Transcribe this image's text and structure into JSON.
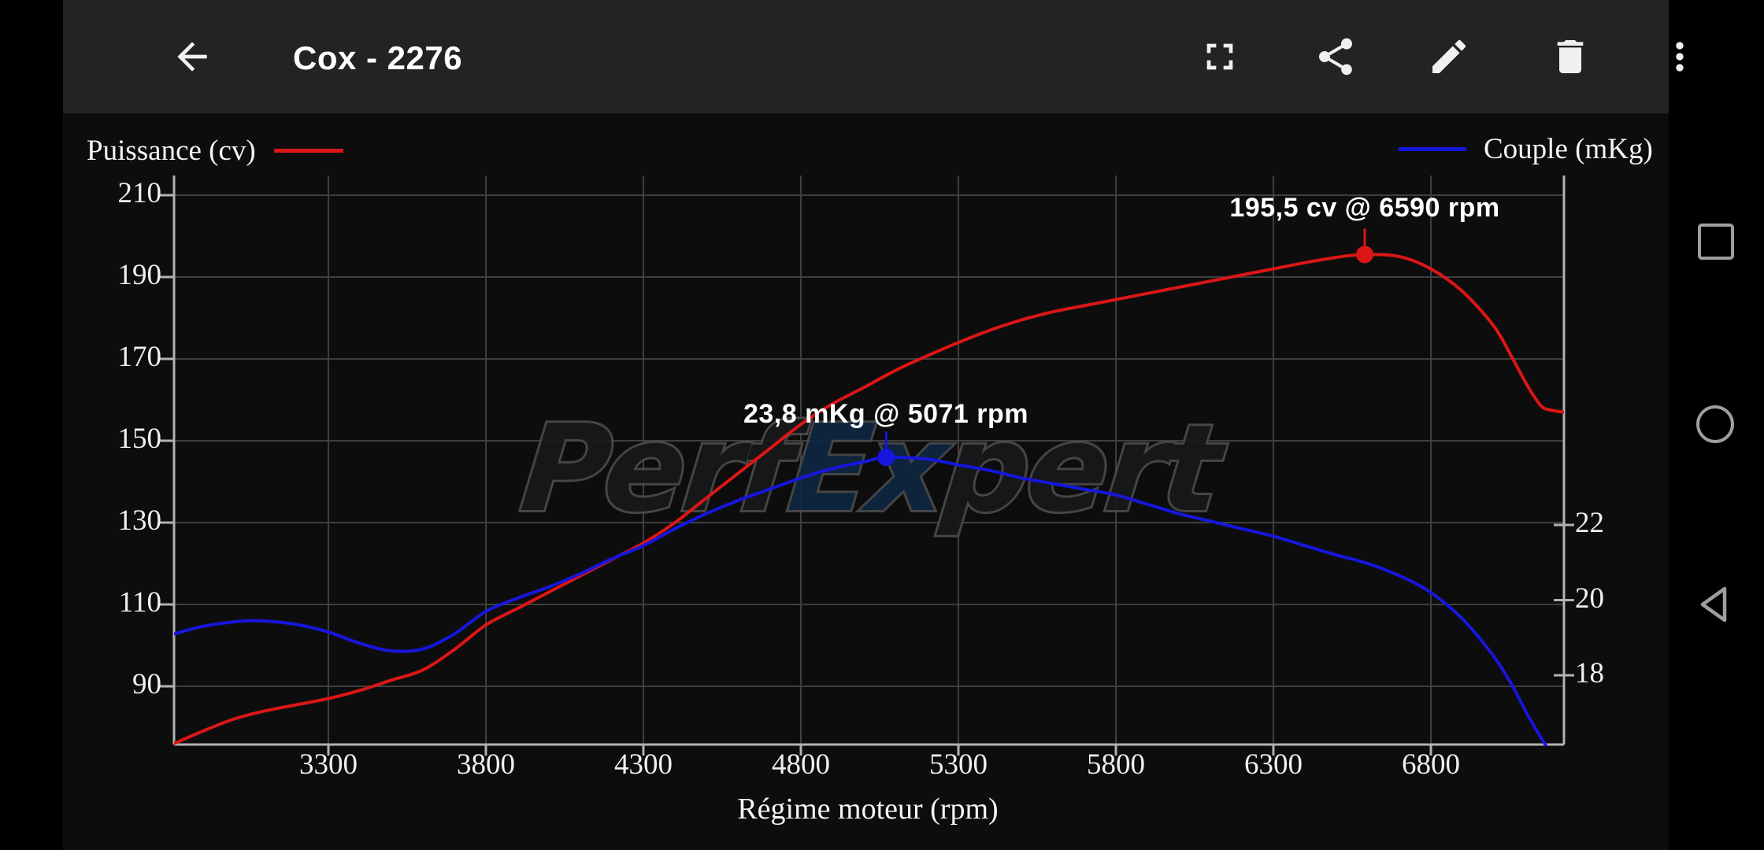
{
  "app_bar": {
    "title": "Cox - 2276",
    "icons": [
      "back-arrow-icon",
      "fullscreen-icon",
      "share-icon",
      "edit-pencil-icon",
      "delete-trash-icon",
      "overflow-menu-icon"
    ],
    "background": "#232323"
  },
  "nav_bar": {
    "buttons": [
      "recents-square",
      "home-circle",
      "back-triangle"
    ],
    "color": "#9e9e9e"
  },
  "watermark": {
    "part1": "Perf",
    "part2": "Ex",
    "part3": "pert"
  },
  "chart_data": {
    "type": "line",
    "xlabel": "Régime moteur (rpm)",
    "x_ticks": [
      3300,
      3800,
      4300,
      4800,
      5300,
      5800,
      6300,
      6800
    ],
    "x_range": [
      2810,
      7220
    ],
    "left_axis": {
      "ticks": [
        210,
        190,
        170,
        150,
        130,
        110,
        90
      ],
      "range": [
        76,
        215
      ]
    },
    "right_axis": {
      "ticks": [
        22,
        20,
        18
      ],
      "range": [
        16.2,
        31.3
      ]
    },
    "grid": true,
    "legend_position": "top",
    "colors": {
      "grid": "#3f3f3f",
      "axis": "#b2b2b2",
      "power": "#dc1616",
      "torque": "#1616dc"
    },
    "series": [
      {
        "name": "Puissance (cv)",
        "axis": "left",
        "color": "#dc1616",
        "peak": [
          6590,
          195.5
        ],
        "peak_label": "195,5 cv @ 6590 rpm",
        "points": [
          [
            2810,
            76
          ],
          [
            2900,
            79
          ],
          [
            3000,
            82
          ],
          [
            3100,
            84
          ],
          [
            3200,
            85.5
          ],
          [
            3300,
            87
          ],
          [
            3400,
            89
          ],
          [
            3500,
            91.5
          ],
          [
            3600,
            94
          ],
          [
            3700,
            99
          ],
          [
            3800,
            105
          ],
          [
            3900,
            109
          ],
          [
            4000,
            113
          ],
          [
            4100,
            117
          ],
          [
            4200,
            121
          ],
          [
            4300,
            125
          ],
          [
            4400,
            130
          ],
          [
            4500,
            136
          ],
          [
            4600,
            142
          ],
          [
            4700,
            148
          ],
          [
            4800,
            154
          ],
          [
            4900,
            159
          ],
          [
            5000,
            163
          ],
          [
            5071,
            166
          ],
          [
            5150,
            169
          ],
          [
            5300,
            174
          ],
          [
            5400,
            177
          ],
          [
            5500,
            179.5
          ],
          [
            5600,
            181.5
          ],
          [
            5700,
            183
          ],
          [
            5800,
            184.5
          ],
          [
            5900,
            186
          ],
          [
            6000,
            187.5
          ],
          [
            6100,
            189
          ],
          [
            6200,
            190.5
          ],
          [
            6300,
            192
          ],
          [
            6400,
            193.5
          ],
          [
            6500,
            194.8
          ],
          [
            6590,
            195.5
          ],
          [
            6700,
            195
          ],
          [
            6800,
            192
          ],
          [
            6900,
            186.5
          ],
          [
            7000,
            178
          ],
          [
            7060,
            170
          ],
          [
            7110,
            163
          ],
          [
            7150,
            158.5
          ],
          [
            7180,
            157.5
          ],
          [
            7220,
            157
          ]
        ]
      },
      {
        "name": "Couple (mKg)",
        "axis": "right",
        "color": "#1616dc",
        "peak": [
          5071,
          23.8
        ],
        "peak_label": "23,8 mKg @ 5071 rpm",
        "points": [
          [
            2810,
            19.1
          ],
          [
            2900,
            19.3
          ],
          [
            3000,
            19.42
          ],
          [
            3080,
            19.45
          ],
          [
            3200,
            19.35
          ],
          [
            3300,
            19.15
          ],
          [
            3400,
            18.85
          ],
          [
            3500,
            18.65
          ],
          [
            3600,
            18.7
          ],
          [
            3700,
            19.1
          ],
          [
            3800,
            19.7
          ],
          [
            3900,
            20.05
          ],
          [
            4000,
            20.35
          ],
          [
            4100,
            20.7
          ],
          [
            4200,
            21.1
          ],
          [
            4300,
            21.45
          ],
          [
            4400,
            21.9
          ],
          [
            4500,
            22.3
          ],
          [
            4600,
            22.65
          ],
          [
            4700,
            22.95
          ],
          [
            4800,
            23.25
          ],
          [
            4900,
            23.5
          ],
          [
            5000,
            23.68
          ],
          [
            5071,
            23.8
          ],
          [
            5200,
            23.75
          ],
          [
            5300,
            23.6
          ],
          [
            5400,
            23.45
          ],
          [
            5500,
            23.25
          ],
          [
            5600,
            23.1
          ],
          [
            5700,
            22.95
          ],
          [
            5800,
            22.8
          ],
          [
            5900,
            22.55
          ],
          [
            6000,
            22.3
          ],
          [
            6100,
            22.1
          ],
          [
            6200,
            21.9
          ],
          [
            6300,
            21.7
          ],
          [
            6400,
            21.45
          ],
          [
            6500,
            21.2
          ],
          [
            6590,
            21.0
          ],
          [
            6700,
            20.65
          ],
          [
            6800,
            20.2
          ],
          [
            6900,
            19.5
          ],
          [
            7000,
            18.5
          ],
          [
            7060,
            17.7
          ],
          [
            7110,
            16.9
          ],
          [
            7160,
            16.2
          ],
          [
            7190,
            15.8
          ]
        ]
      }
    ]
  }
}
